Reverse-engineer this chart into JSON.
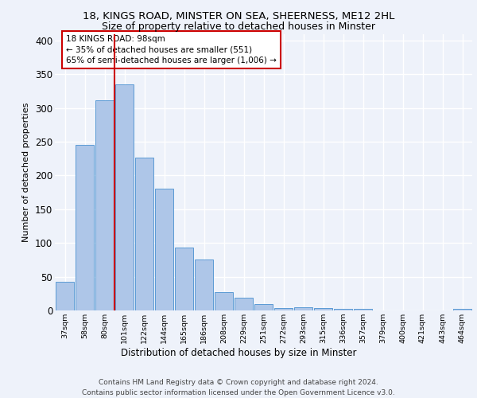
{
  "title1": "18, KINGS ROAD, MINSTER ON SEA, SHEERNESS, ME12 2HL",
  "title2": "Size of property relative to detached houses in Minster",
  "xlabel": "Distribution of detached houses by size in Minster",
  "ylabel": "Number of detached properties",
  "footer1": "Contains HM Land Registry data © Crown copyright and database right 2024.",
  "footer2": "Contains public sector information licensed under the Open Government Licence v3.0.",
  "annotation_line1": "18 KINGS ROAD: 98sqm",
  "annotation_line2": "← 35% of detached houses are smaller (551)",
  "annotation_line3": "65% of semi-detached houses are larger (1,006) →",
  "bar_color": "#aec6e8",
  "bar_edge_color": "#5b9bd5",
  "categories": [
    "37sqm",
    "58sqm",
    "80sqm",
    "101sqm",
    "122sqm",
    "144sqm",
    "165sqm",
    "186sqm",
    "208sqm",
    "229sqm",
    "251sqm",
    "272sqm",
    "293sqm",
    "315sqm",
    "336sqm",
    "357sqm",
    "379sqm",
    "400sqm",
    "421sqm",
    "443sqm",
    "464sqm"
  ],
  "values": [
    42,
    246,
    312,
    335,
    226,
    181,
    93,
    75,
    27,
    19,
    10,
    4,
    5,
    4,
    2,
    2,
    0,
    0,
    0,
    0,
    2
  ],
  "ylim": [
    0,
    410
  ],
  "yticks": [
    0,
    50,
    100,
    150,
    200,
    250,
    300,
    350,
    400
  ],
  "red_line_index": 2.5,
  "background_color": "#eef2fa",
  "grid_color": "#ffffff",
  "annotation_box_color": "#ffffff",
  "annotation_box_edge": "#cc0000",
  "red_line_color": "#cc0000"
}
